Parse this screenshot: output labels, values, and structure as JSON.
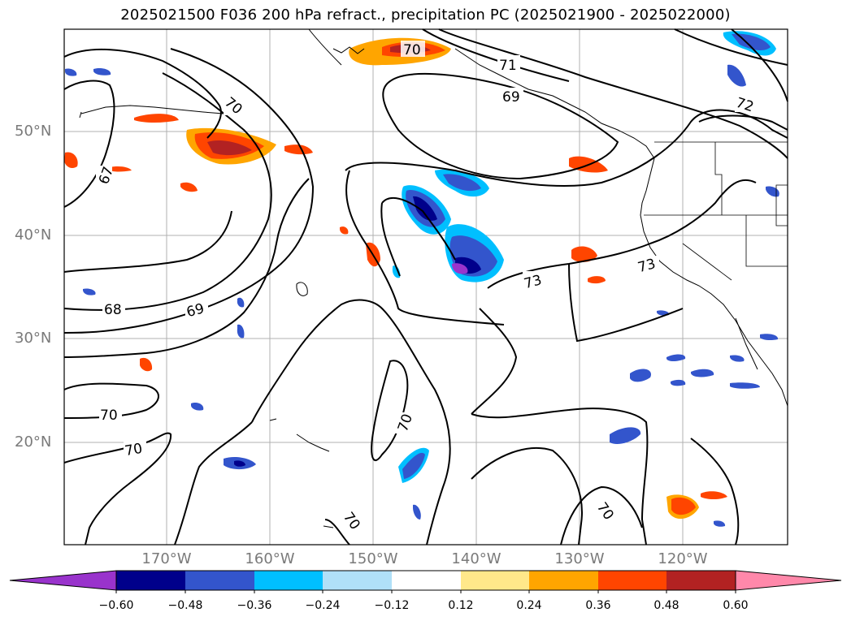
{
  "title": "2025021500 F036 200 hPa refract., precipitation PC (2025021900 - 2025022000)",
  "lat_labels": [
    "50°N",
    "40°N",
    "30°N",
    "20°N"
  ],
  "lon_labels": [
    "170°W",
    "160°W",
    "150°W",
    "140°W",
    "130°W",
    "120°W"
  ],
  "contour_labels": [
    "70",
    "71",
    "69",
    "72",
    "70",
    "67",
    "73",
    "73",
    "68",
    "69",
    "70",
    "70",
    "70",
    "70",
    "70"
  ],
  "colorbar": {
    "ticks": [
      "−0.60",
      "−0.48",
      "−0.36",
      "−0.24",
      "−0.12",
      "0.12",
      "0.24",
      "0.36",
      "0.48",
      "0.60"
    ],
    "colors": [
      "#9933cc",
      "#00008b",
      "#3355cc",
      "#00bfff",
      "#b0e0f8",
      "#ffffff",
      "#ffe88a",
      "#ffa500",
      "#ff4500",
      "#b22222",
      "#ff88aa"
    ]
  }
}
